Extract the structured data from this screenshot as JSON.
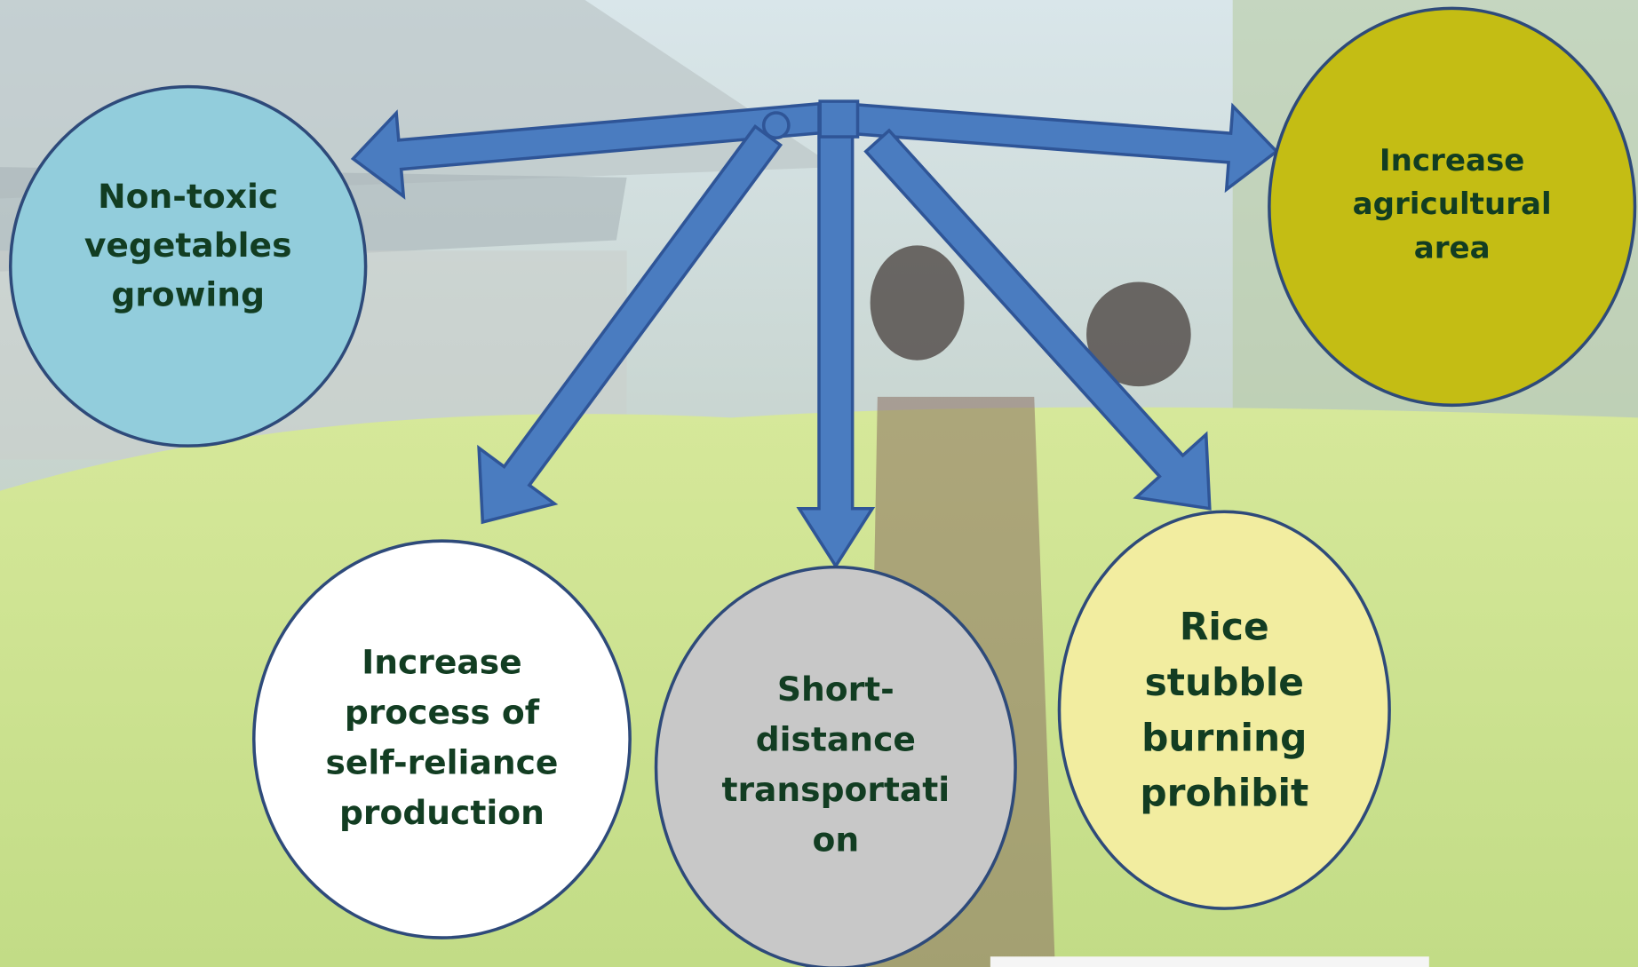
{
  "nodes": [
    {
      "lines": [
        "Non-toxic",
        "vegetables",
        "growing"
      ]
    },
    {
      "lines": [
        "Increase",
        "agricultural",
        "area"
      ]
    },
    {
      "lines": [
        "Increase",
        "process of",
        "self-reliance",
        "production"
      ]
    },
    {
      "lines": [
        "Short-",
        "distance",
        "transportati",
        "on"
      ]
    },
    {
      "lines": [
        "Rice",
        "stubble",
        "burning",
        "prohibit"
      ]
    }
  ]
}
